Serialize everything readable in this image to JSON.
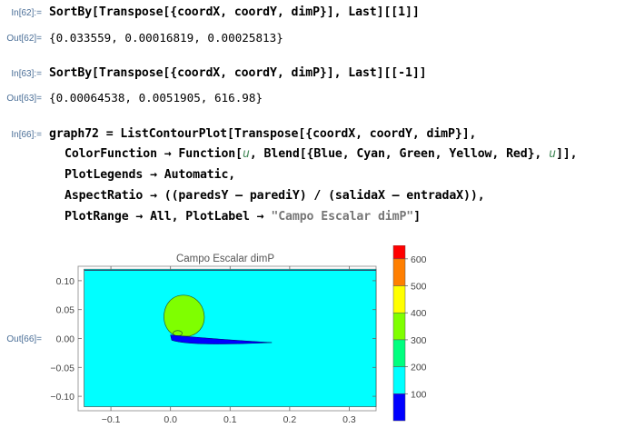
{
  "cells": [
    {
      "in_label": "In[62]:=",
      "code": "SortBy[Transpose[{coordX, coordY, dimP}], Last][[1]]",
      "out_label": "Out[62]=",
      "output": "{0.033559, 0.00016819, 0.00025813}"
    },
    {
      "in_label": "In[63]:=",
      "code": "SortBy[Transpose[{coordX, coordY, dimP}], Last][[-1]]",
      "out_label": "Out[63]=",
      "output": "{0.00064538, 0.0051905, 616.98}"
    },
    {
      "in_label": "In[66]:=",
      "line1": "graph72 = ListContourPlot[Transpose[{coordX, coordY, dimP}],",
      "line2a": "ColorFunction → Function[",
      "line2var": "u",
      "line2b": ", Blend[{Blue, Cyan, Green, Yellow, Red}, ",
      "line2var2": "u",
      "line2c": "]],",
      "line3": "PlotLegends → Automatic,",
      "line4": "AspectRatio → ((paredsY – parediY) / (salidaX – entradaX)),",
      "line5a": "PlotRange → All, PlotLabel → ",
      "line5str": "\"Campo Escalar dimP\"",
      "line5b": "]",
      "out_label": "Out[66]="
    }
  ],
  "chart_data": {
    "type": "contour",
    "title": "Campo Escalar dimP",
    "xlabel": "",
    "ylabel": "",
    "xlim": [
      -0.155,
      0.345
    ],
    "ylim": [
      -0.125,
      0.125
    ],
    "x_ticks": [
      "-0.1",
      "0.0",
      "0.1",
      "0.2",
      "0.3"
    ],
    "x_tick_values": [
      -0.1,
      0.0,
      0.1,
      0.2,
      0.3
    ],
    "y_ticks": [
      "0.10",
      "0.05",
      "0.00",
      "-0.05",
      "-0.10"
    ],
    "y_tick_values": [
      0.1,
      0.05,
      0.0,
      -0.05,
      -0.1
    ],
    "legend": {
      "labels": [
        "600",
        "500",
        "400",
        "300",
        "200",
        "100"
      ],
      "values": [
        600,
        500,
        400,
        300,
        200,
        100
      ],
      "colors": [
        "#ff0000",
        "#ff7f00",
        "#ffff00",
        "#7fff00",
        "#00ff7f",
        "#00ffff",
        "#0000ff"
      ],
      "range": [
        0,
        650
      ]
    },
    "background_color": "#00ffff",
    "bubble_color": "#7fff00",
    "wake_color": "#0000ff"
  }
}
